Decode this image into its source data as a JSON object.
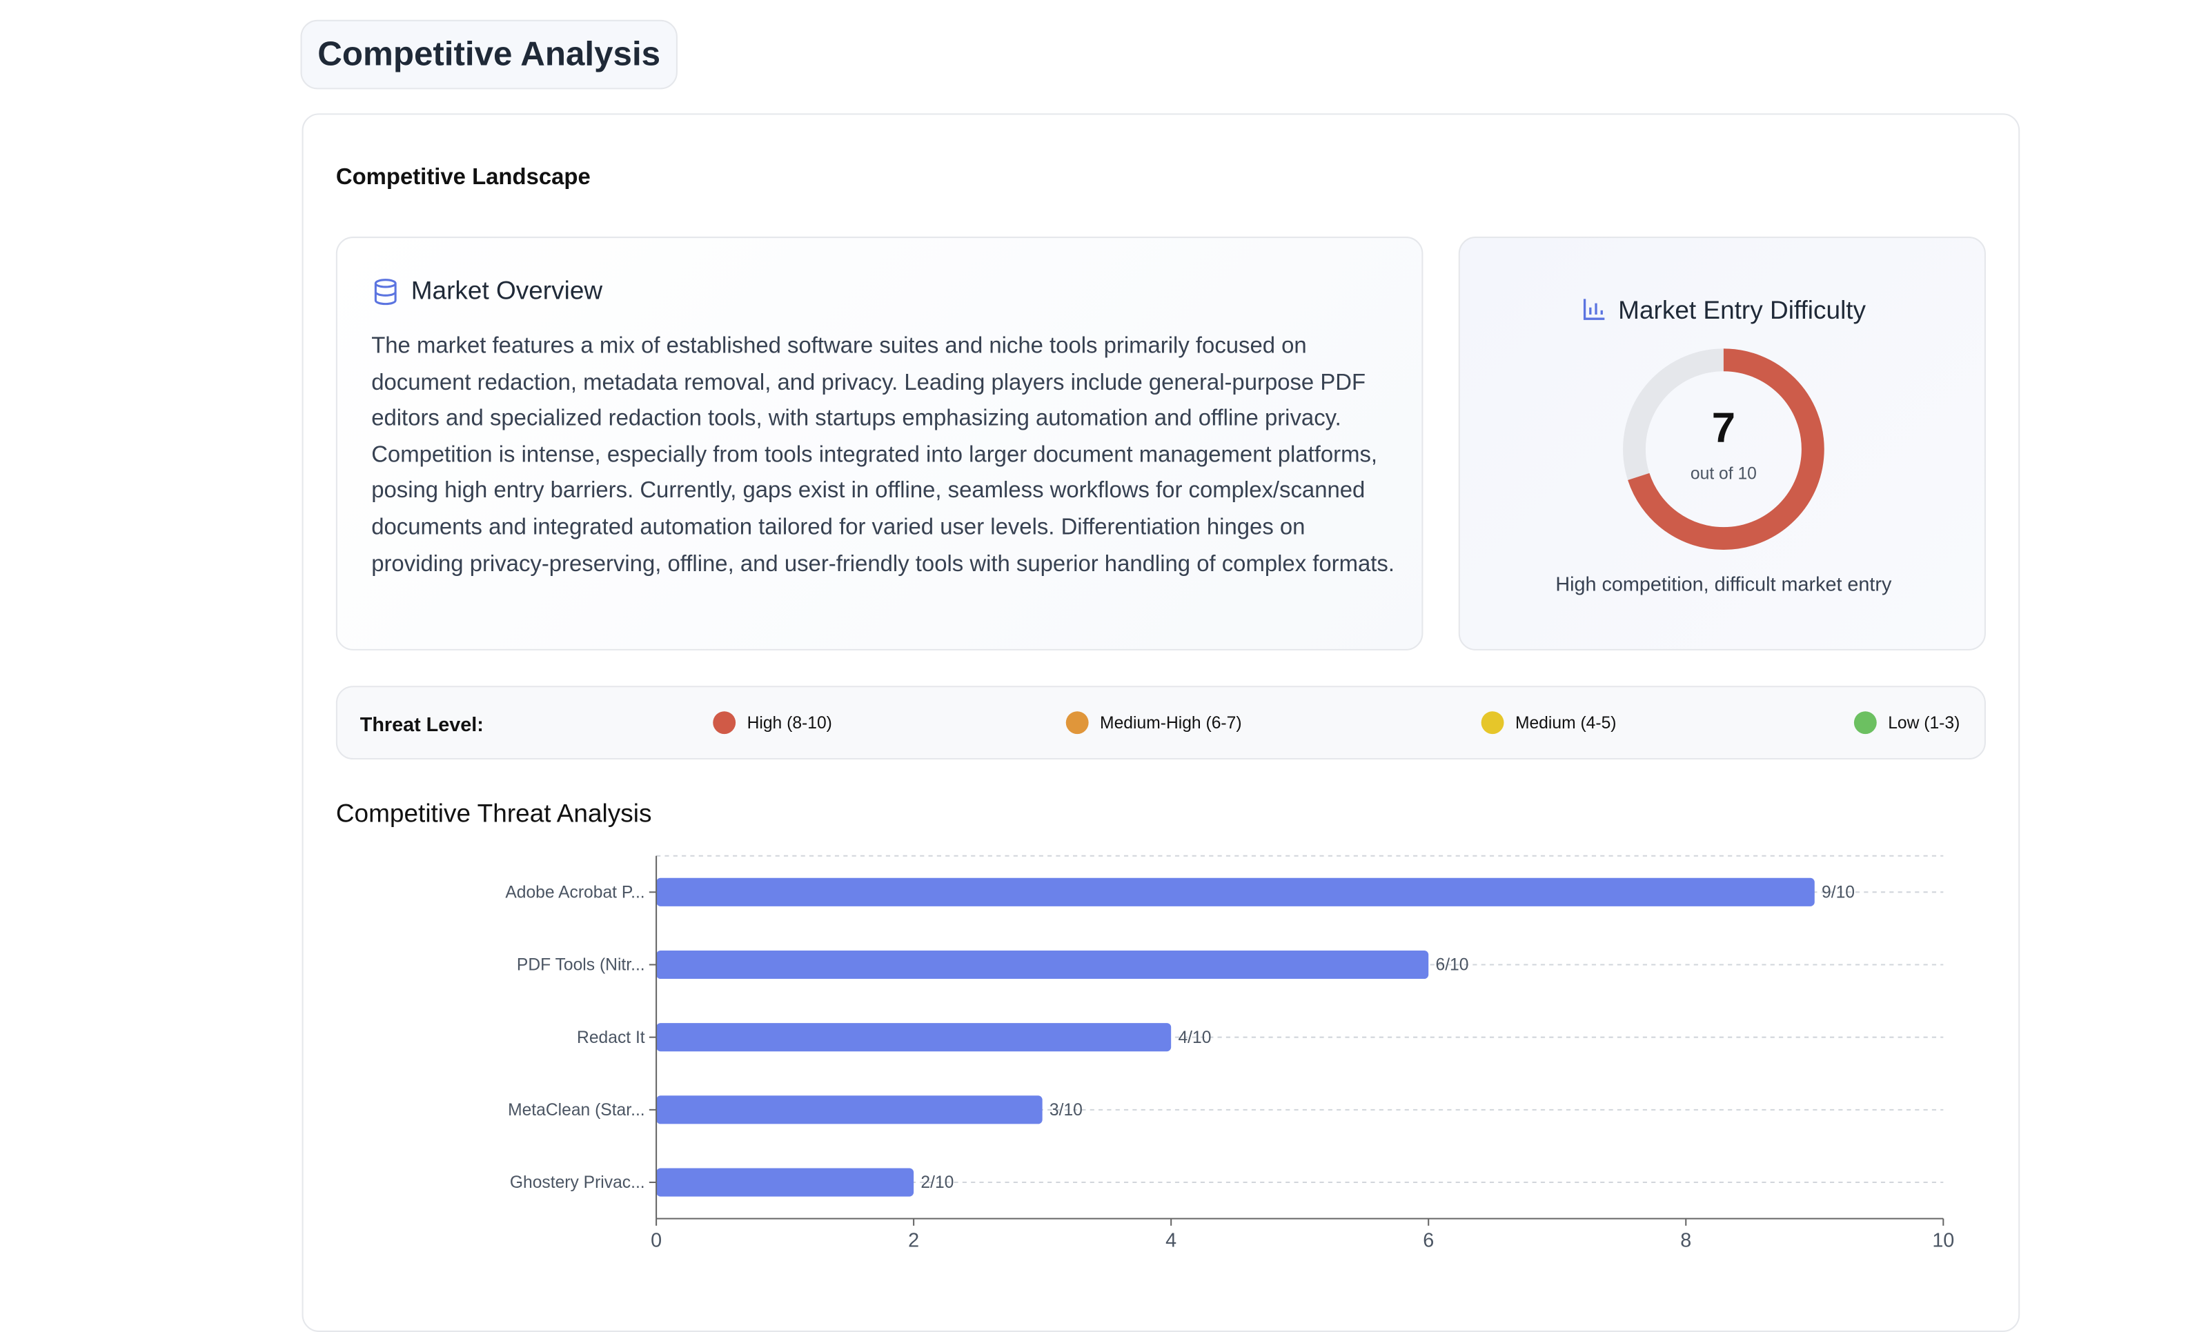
{
  "header": {
    "title": "Competitive Analysis"
  },
  "section": {
    "title": "Competitive Landscape"
  },
  "overview": {
    "title": "Market Overview",
    "text": "The market features a mix of established software suites and niche tools primarily focused on document redaction, metadata removal, and privacy. Leading players include general-purpose PDF editors and specialized redaction tools, with startups emphasizing automation and offline privacy. Competition is intense, especially from tools integrated into larger document management platforms, posing high entry barriers. Currently, gaps exist in offline, seamless workflows for complex/scanned documents and integrated automation tailored for varied user levels. Differentiation hinges on providing privacy-preserving, offline, and user-friendly tools with superior handling of complex formats."
  },
  "difficulty": {
    "title": "Market Entry Difficulty",
    "value": 7,
    "max": 10,
    "label": "out of 10",
    "color": "#cd5c4a",
    "description": "High competition, difficult market entry"
  },
  "threat_legend": {
    "label": "Threat Level:",
    "items": [
      {
        "name": "High (8-10)",
        "color": "#d05a47"
      },
      {
        "name": "Medium-High (6-7)",
        "color": "#e0963a"
      },
      {
        "name": "Medium (4-5)",
        "color": "#e6c62a"
      },
      {
        "name": "Low (1-3)",
        "color": "#6cc061"
      }
    ]
  },
  "chart_data": {
    "type": "bar",
    "orientation": "horizontal",
    "title": "Competitive Threat Analysis",
    "categories": [
      "Adobe Acrobat P...",
      "PDF Tools (Nitr...",
      "Redact It",
      "MetaClean (Star...",
      "Ghostery Privac..."
    ],
    "values": [
      9,
      6,
      4,
      3,
      2
    ],
    "value_labels": [
      "9/10",
      "6/10",
      "4/10",
      "3/10",
      "2/10"
    ],
    "color": "#6b82ea",
    "xlim": [
      0,
      10
    ],
    "xticks": [
      0,
      2,
      4,
      6,
      8,
      10
    ],
    "grid": true
  }
}
